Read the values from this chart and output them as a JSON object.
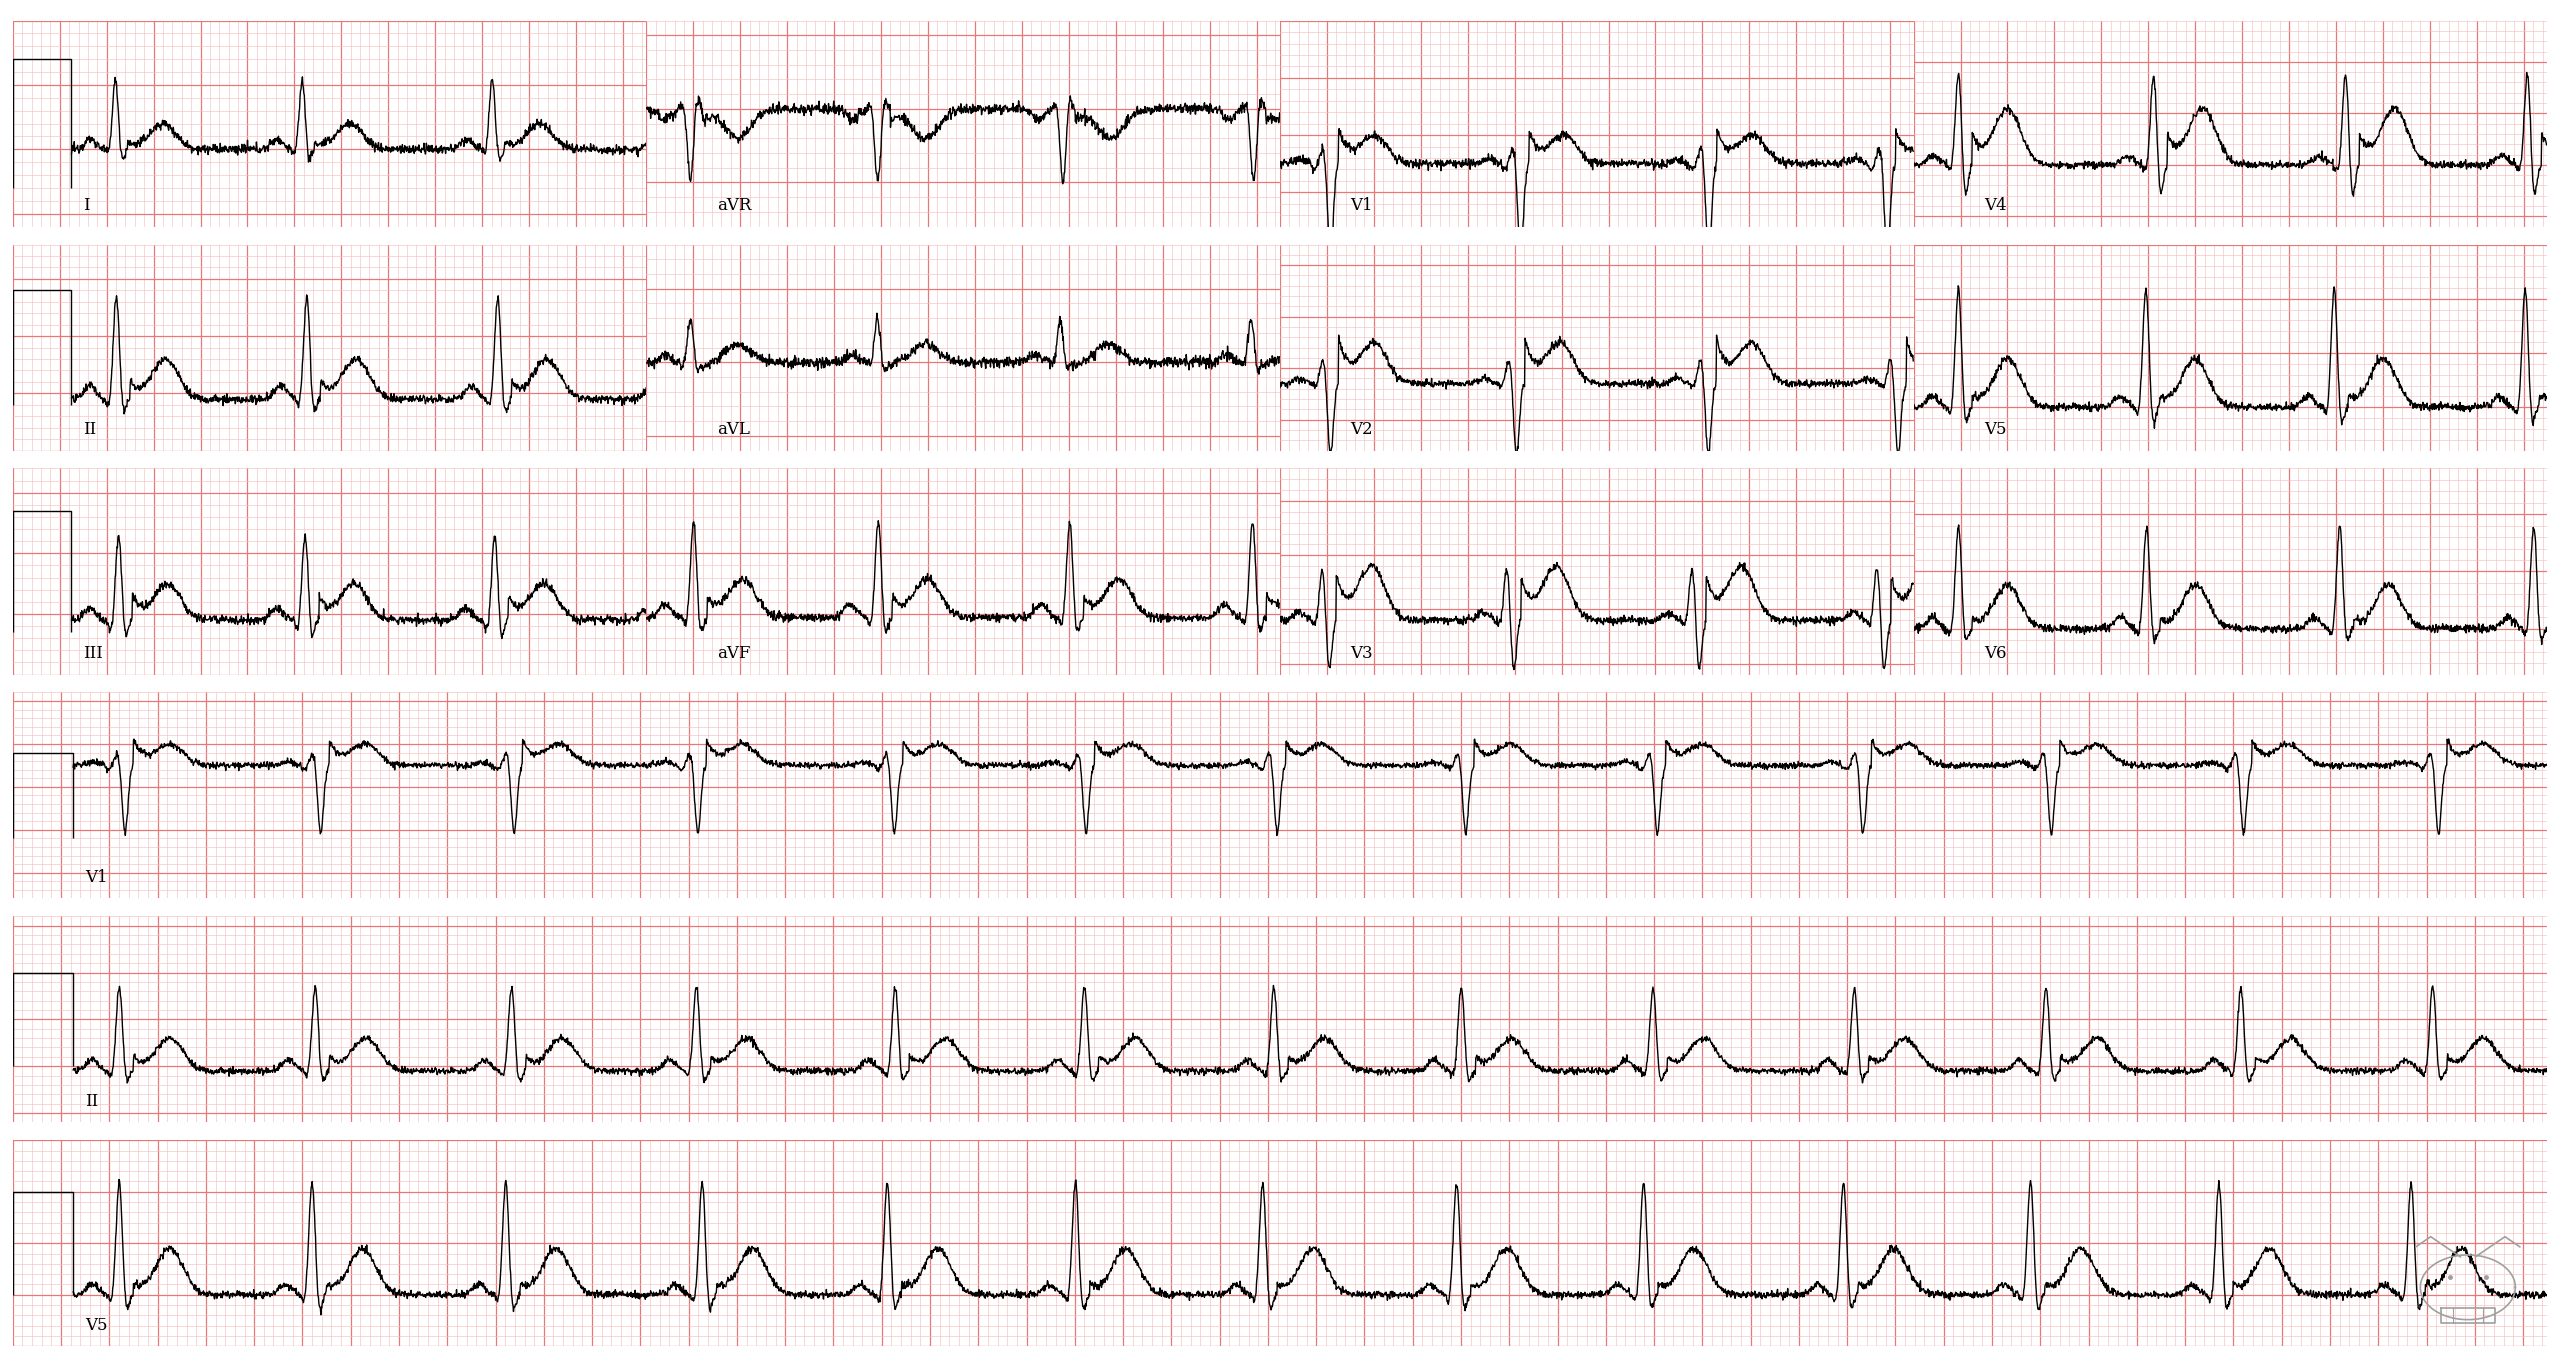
{
  "bg_color": "#ffffff",
  "grid_major_color": "#e87878",
  "grid_minor_color": "#f5c0c0",
  "ecg_color": "#000000",
  "figsize": [
    25.6,
    13.49
  ],
  "dpi": 100,
  "top_leads": [
    [
      "I",
      "aVR",
      "V1",
      "V4"
    ],
    [
      "II",
      "aVL",
      "V2",
      "V5"
    ],
    [
      "III",
      "aVF",
      "V3",
      "V6"
    ]
  ],
  "rhythm_leads": [
    "V1",
    "II",
    "V5"
  ],
  "hr_bpm": 75,
  "lw_major": 0.9,
  "lw_minor": 0.45,
  "lw_ecg": 1.0,
  "label_fontsize": 12
}
